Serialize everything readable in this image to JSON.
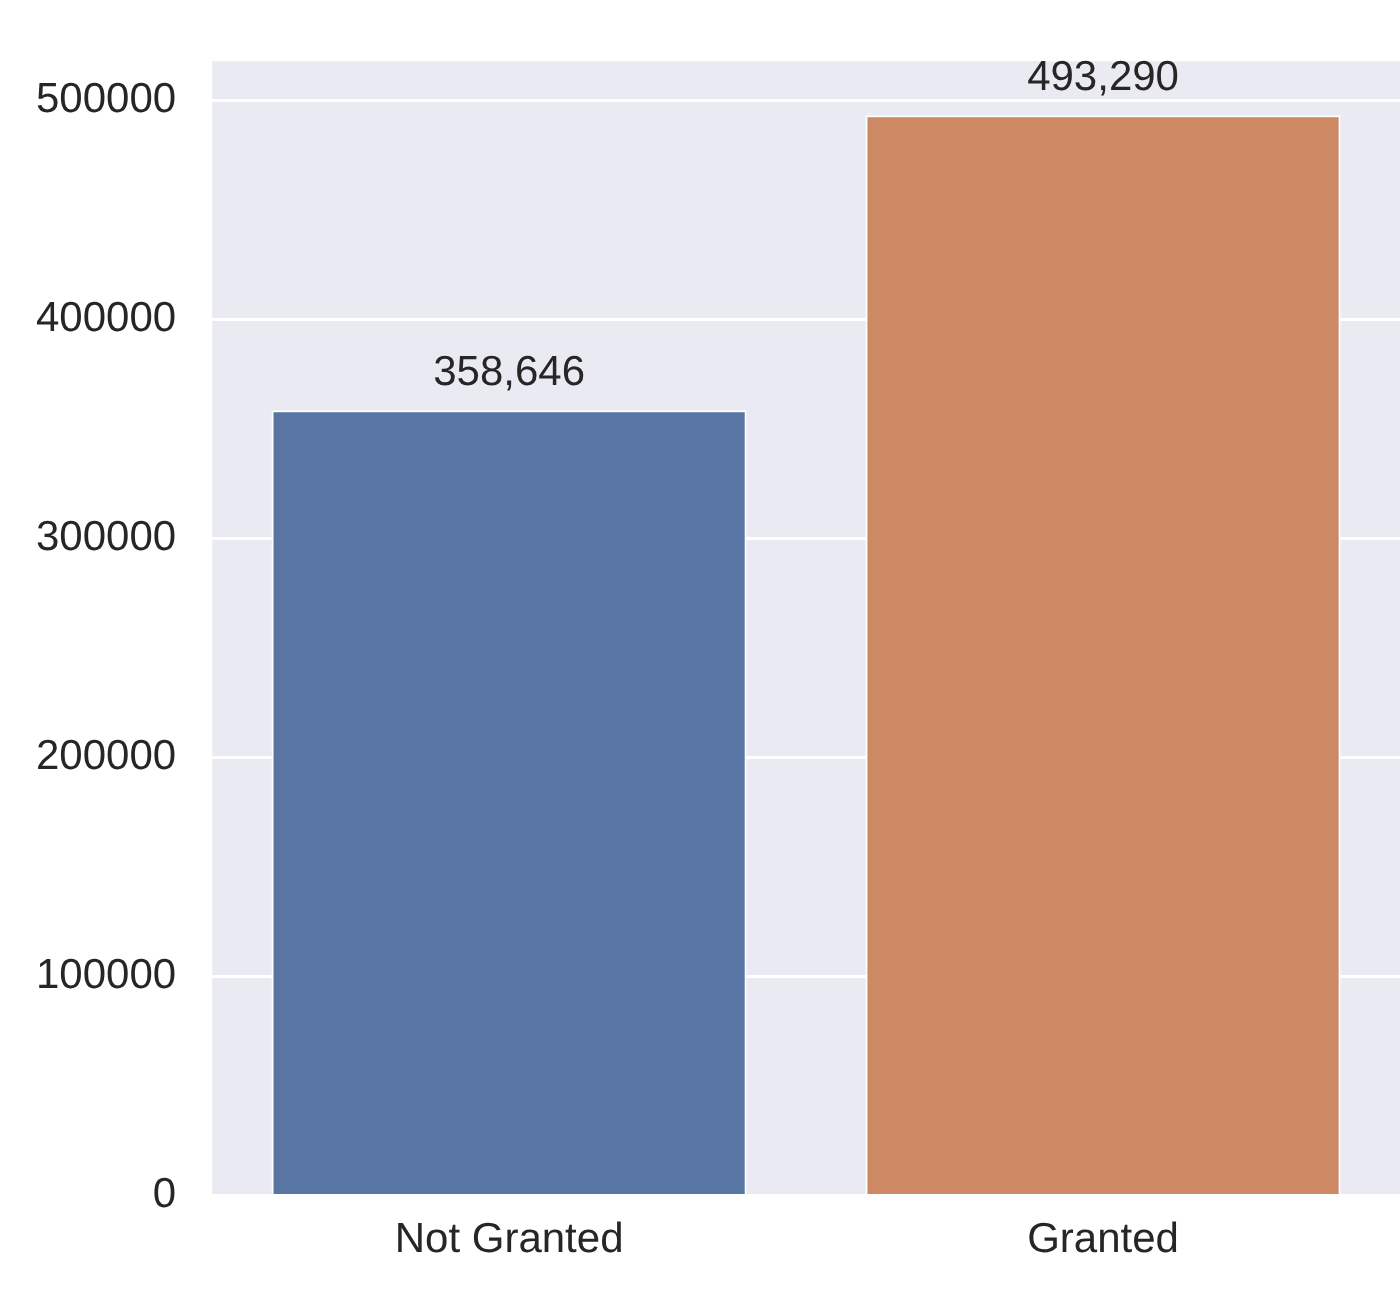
{
  "chart_data": {
    "type": "bar",
    "categories": [
      "Not Granted",
      "Granted"
    ],
    "values": [
      358646,
      493290
    ],
    "colors": [
      "#5875a4",
      "#cc8963"
    ],
    "value_labels": [
      "358,646",
      "493,290"
    ],
    "ylim": [
      0,
      518000
    ],
    "yticks": [
      0,
      100000,
      200000,
      300000,
      400000,
      500000
    ],
    "grid": "y",
    "legend": false
  }
}
